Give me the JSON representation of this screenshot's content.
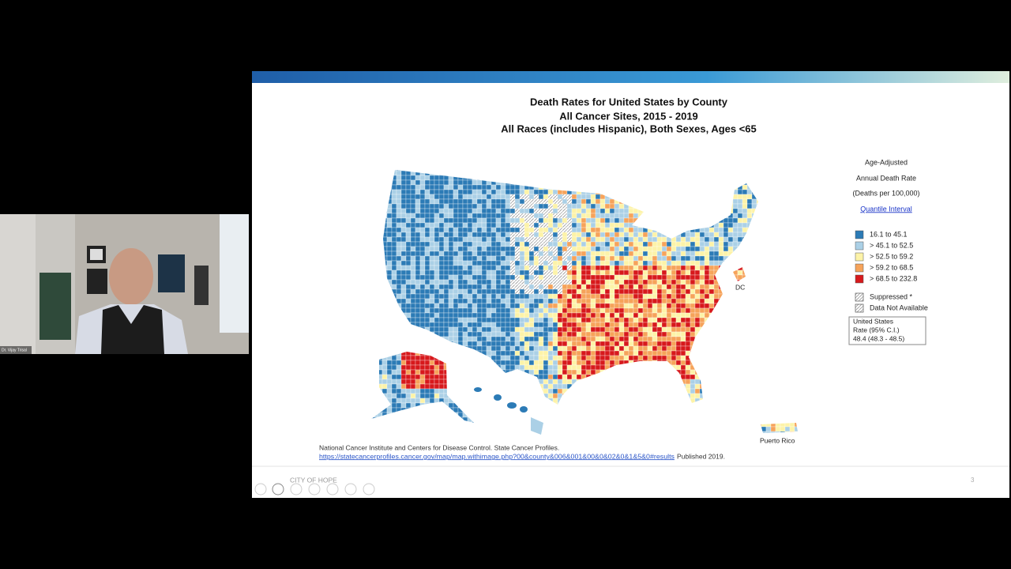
{
  "video": {
    "name_tag": "Dr. Vijay Trisal"
  },
  "slide": {
    "title": [
      "Death Rates for United States by County",
      "All Cancer Sites, 2015 - 2019",
      "All Races (includes Hispanic), Both Sexes, Ages <65"
    ],
    "legend": {
      "heading": [
        "Age-Adjusted",
        "Annual Death Rate",
        "(Deaths per 100,000)"
      ],
      "link": "Quantile Interval",
      "items": [
        {
          "label": "16.1 to 45.1",
          "color": "#2c7bb6"
        },
        {
          "label": "> 45.1 to 52.5",
          "color": "#abd0e6"
        },
        {
          "label": "> 52.5 to 59.2",
          "color": "#fdf3a8"
        },
        {
          "label": "> 59.2 to 68.5",
          "color": "#f6a35a"
        },
        {
          "label": "> 68.5 to 232.8",
          "color": "#d7191c"
        }
      ],
      "other": [
        "Suppressed *",
        "Data Not Available"
      ]
    },
    "us_rate": [
      "United States",
      "Rate (95% C.I.)",
      "48.4 (48.3 - 48.5)"
    ],
    "labels": {
      "dc": "DC",
      "puerto_rico": "Puerto Rico"
    },
    "source": {
      "text": "National Cancer Institute and Centers for Disease Control. State Cancer Profiles.",
      "url": "https://statecancerprofiles.cancer.gov/map/map.withimage.php?00&county&006&001&00&0&02&0&1&5&0#results",
      "published": "Published 2019."
    },
    "footer": "CITY OF HOPE",
    "page_number": "3"
  }
}
